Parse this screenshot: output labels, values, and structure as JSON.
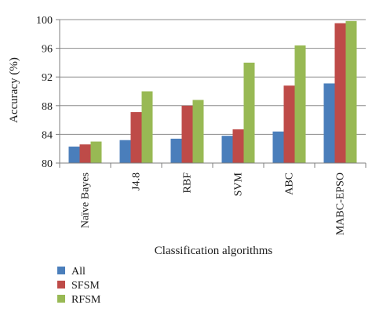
{
  "chart_data": {
    "type": "bar",
    "xlabel": "Classification algorithms",
    "ylabel": "Accuracy (%)",
    "ylim": [
      80,
      100
    ],
    "yticks": [
      80,
      84,
      88,
      92,
      96,
      100
    ],
    "grid": true,
    "legend_position": "bottom-left",
    "categories": [
      "Naïve Bayes",
      "J4.8",
      "RBF",
      "SVM",
      "ABC",
      "MABC-EPSO"
    ],
    "series": [
      {
        "name": "All",
        "color": "#4a7ebb",
        "values": [
          82.3,
          83.2,
          83.4,
          83.8,
          84.4,
          91.1
        ]
      },
      {
        "name": "SFSM",
        "color": "#be4b48",
        "values": [
          82.6,
          87.1,
          88.0,
          84.7,
          90.8,
          99.5
        ]
      },
      {
        "name": "RFSM",
        "color": "#98b954",
        "values": [
          83.0,
          90.0,
          88.8,
          94.0,
          96.4,
          99.8
        ]
      }
    ]
  }
}
